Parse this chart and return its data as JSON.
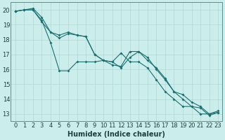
{
  "xlabel": "Humidex (Indice chaleur)",
  "bg_color": "#cbeeed",
  "grid_major_color": "#b0d8d5",
  "grid_minor_color": "#d0eceb",
  "line_color": "#1a7070",
  "xlim": [
    -0.5,
    23.5
  ],
  "ylim": [
    12.5,
    20.5
  ],
  "xticks": [
    0,
    1,
    2,
    3,
    4,
    5,
    6,
    7,
    8,
    9,
    10,
    11,
    12,
    13,
    14,
    15,
    16,
    17,
    18,
    19,
    20,
    21,
    22,
    23
  ],
  "yticks": [
    13,
    14,
    15,
    16,
    17,
    18,
    19,
    20
  ],
  "line1_x": [
    0,
    1,
    2,
    3,
    4,
    5,
    6,
    7,
    8,
    9,
    10,
    11,
    12,
    13,
    14,
    15,
    16,
    17,
    18,
    19,
    20,
    21,
    22,
    23
  ],
  "line1_y": [
    19.9,
    20.0,
    20.0,
    19.3,
    17.8,
    15.9,
    15.9,
    16.5,
    16.5,
    16.5,
    16.6,
    16.5,
    17.1,
    16.5,
    16.5,
    16.1,
    15.3,
    14.5,
    14.0,
    13.5,
    13.5,
    13.0,
    13.0,
    13.1
  ],
  "line2_x": [
    0,
    1,
    2,
    3,
    4,
    5,
    6,
    7,
    8,
    9,
    10,
    11,
    12,
    13,
    14,
    15,
    16,
    17,
    18,
    19,
    20,
    21,
    22,
    23
  ],
  "line2_y": [
    19.9,
    20.0,
    20.1,
    19.5,
    18.5,
    18.3,
    18.5,
    18.3,
    18.2,
    17.0,
    16.6,
    16.5,
    16.1,
    16.8,
    17.2,
    16.6,
    16.1,
    15.4,
    14.5,
    14.3,
    13.8,
    13.5,
    13.0,
    13.2
  ],
  "line3_x": [
    0,
    1,
    2,
    3,
    4,
    5,
    6,
    7,
    8,
    9,
    10,
    11,
    12,
    13,
    14,
    15,
    16,
    17,
    18,
    19,
    20,
    21,
    22,
    23
  ],
  "line3_y": [
    19.9,
    20.0,
    20.0,
    19.2,
    18.5,
    18.1,
    18.4,
    18.3,
    18.2,
    17.0,
    16.6,
    16.3,
    16.2,
    17.2,
    17.2,
    16.8,
    16.0,
    15.3,
    14.5,
    14.0,
    13.5,
    13.4,
    12.9,
    13.1
  ],
  "tick_fontsize": 6,
  "xlabel_fontsize": 7
}
